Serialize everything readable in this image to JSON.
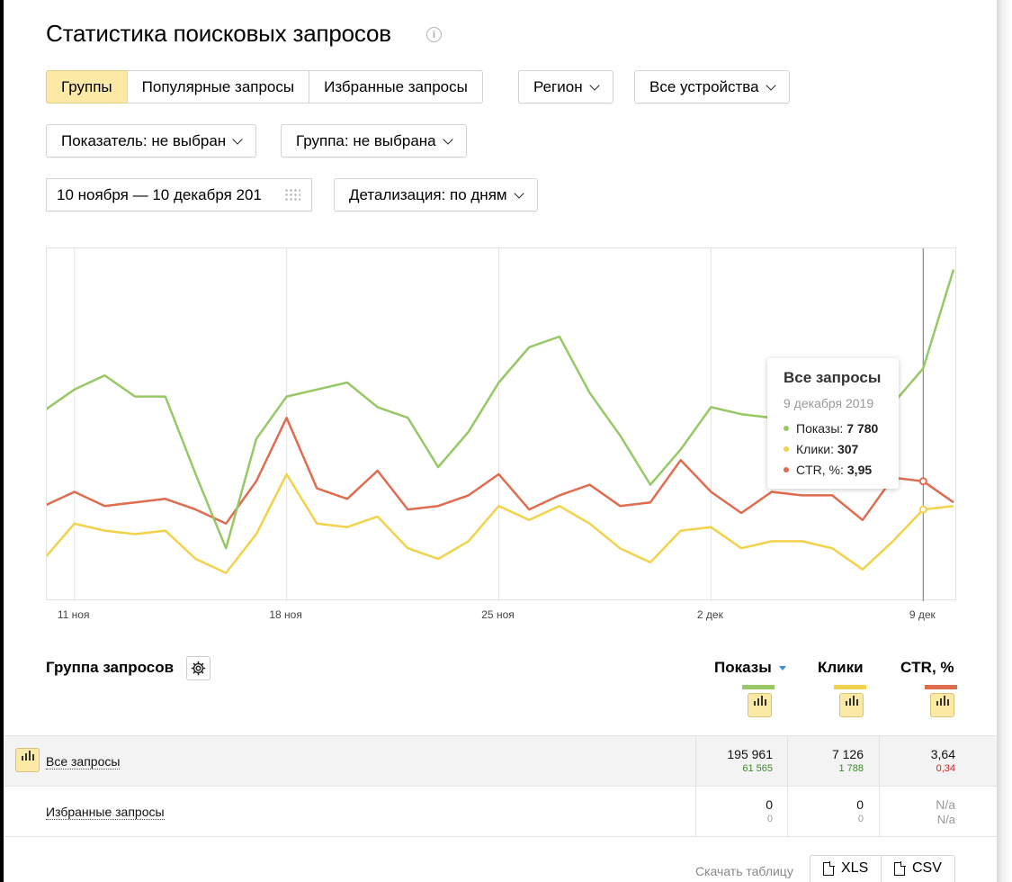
{
  "title": "Статистика поисковых запросов",
  "info_icon": "info-icon",
  "tabs": [
    {
      "label": "Группы",
      "active": true
    },
    {
      "label": "Популярные запросы",
      "active": false
    },
    {
      "label": "Избранные запросы",
      "active": false
    }
  ],
  "filters": {
    "region": "Регион",
    "devices": "Все устройства",
    "metric": "Показатель: не выбран",
    "group": "Группа: не выбрана",
    "date_range": "10 ноября — 10 декабря 201",
    "detail": "Детализация: по дням"
  },
  "chart_data": {
    "type": "line",
    "x_labels": [
      {
        "label": "11 ноя",
        "day_index": 1
      },
      {
        "label": "18 ноя",
        "day_index": 8
      },
      {
        "label": "25 ноя",
        "day_index": 15
      },
      {
        "label": "2 дек",
        "day_index": 22
      },
      {
        "label": "9 дек",
        "day_index": 29
      }
    ],
    "colors": {
      "shows": "#97c866",
      "clicks": "#f2d14b",
      "ctr": "#e06c4f"
    },
    "series_relative": {
      "shows": [
        0.54,
        0.6,
        0.64,
        0.58,
        0.58,
        0.36,
        0.15,
        0.46,
        0.58,
        0.6,
        0.62,
        0.55,
        0.52,
        0.38,
        0.48,
        0.62,
        0.72,
        0.75,
        0.59,
        0.47,
        0.33,
        0.43,
        0.55,
        0.53,
        0.52,
        0.5,
        0.48,
        0.43,
        0.56,
        0.66,
        0.94
      ],
      "clicks": [
        0.12,
        0.22,
        0.2,
        0.19,
        0.2,
        0.12,
        0.08,
        0.19,
        0.36,
        0.22,
        0.21,
        0.24,
        0.15,
        0.12,
        0.17,
        0.27,
        0.23,
        0.27,
        0.22,
        0.15,
        0.11,
        0.2,
        0.21,
        0.15,
        0.17,
        0.17,
        0.15,
        0.09,
        0.17,
        0.26,
        0.27
      ],
      "ctr": [
        0.27,
        0.31,
        0.27,
        0.28,
        0.29,
        0.26,
        0.22,
        0.34,
        0.52,
        0.32,
        0.29,
        0.37,
        0.26,
        0.27,
        0.3,
        0.36,
        0.26,
        0.3,
        0.33,
        0.27,
        0.28,
        0.4,
        0.31,
        0.25,
        0.31,
        0.3,
        0.3,
        0.23,
        0.35,
        0.34,
        0.28
      ]
    },
    "cursor_day_index": 29,
    "tooltip": {
      "title": "Все запросы",
      "date": "9 декабря 2019",
      "rows": [
        {
          "label": "Показы:",
          "value": "7 780",
          "color": "#97c866"
        },
        {
          "label": "Клики:",
          "value": "307",
          "color": "#f2d14b"
        },
        {
          "label": "CTR, %:",
          "value": "3,95",
          "color": "#e06c4f"
        }
      ]
    }
  },
  "table": {
    "group_header": "Группа запросов",
    "settings_icon": "gear-icon",
    "columns": [
      {
        "label": "Показы",
        "sorted": true,
        "color": "#97c866"
      },
      {
        "label": "Клики",
        "sorted": false,
        "color": "#f2d14b"
      },
      {
        "label": "CTR, %",
        "sorted": false,
        "color": "#e06c4f"
      }
    ],
    "rows": [
      {
        "label": "Все запросы",
        "shows": "195 961",
        "shows_sub": "61 565",
        "clicks": "7 126",
        "clicks_sub": "1 788",
        "ctr": "3,64",
        "ctr_sub": "0,34"
      },
      {
        "label": "Избранные запросы",
        "shows": "0",
        "shows_sub": "0",
        "clicks": "0",
        "clicks_sub": "0",
        "ctr": "N/a",
        "ctr_sub": "N/a"
      }
    ]
  },
  "download": {
    "label": "Скачать таблицу",
    "xls": "XLS",
    "csv": "CSV"
  }
}
